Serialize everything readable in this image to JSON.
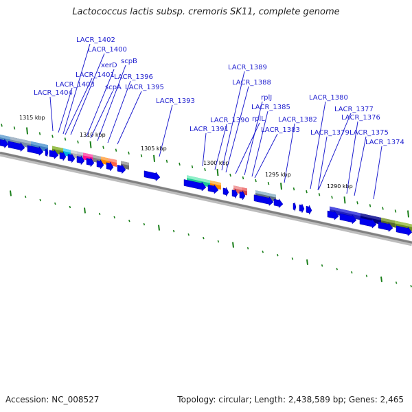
{
  "title": "Lactococcus lactis subsp. cremoris SK11, complete genome",
  "footer": {
    "accession_label": "Accession:",
    "accession": "NC_008527",
    "topology_label": "Topology:",
    "topology": "circular",
    "length_label": "Length:",
    "length": "2,438,589 bp",
    "genes_label": "Genes:",
    "genes": "2,465"
  },
  "colors": {
    "gene_arrow": "#0000ee",
    "label_text": "#1f1fcf",
    "leader_line": "#1f1fcf",
    "tick_green": "#1a7f1a",
    "backbone": "#808080"
  },
  "kbp_ticks": [
    "1315 kbp",
    "1310 kbp",
    "1305 kbp",
    "1300 kbp",
    "1295 kbp",
    "1290 kbp"
  ],
  "gene_labels": [
    "LACR_1402",
    "LACR_1400",
    "scpB",
    "xerD",
    "LACR_1401",
    "LACR_1396",
    "LACR_1403",
    "scpA",
    "LACR_1395",
    "LACR_1404",
    "LACR_1393",
    "LACR_1389",
    "LACR_1388",
    "rplJ",
    "LACR_1385",
    "LACR_1380",
    "LACR_1377",
    "rplL",
    "LACR_1376",
    "LACR_1390",
    "LACR_1382",
    "LACR_1391",
    "LACR_1383",
    "LACR_1379",
    "LACR_1375",
    "LACR_1374"
  ]
}
